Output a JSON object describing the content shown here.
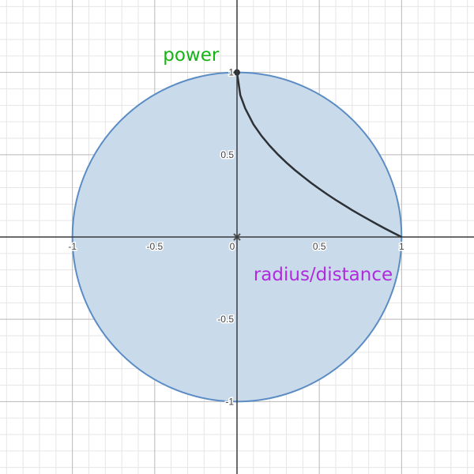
{
  "chart_data": {
    "type": "line",
    "xlim": [
      -1.44,
      1.44
    ],
    "ylim": [
      -1.44,
      1.44
    ],
    "grid": true,
    "x_ticks": [
      {
        "value": -1,
        "label": "-1"
      },
      {
        "value": -0.5,
        "label": "-0.5"
      },
      {
        "value": 0,
        "label": "0"
      },
      {
        "value": 0.5,
        "label": "0.5"
      },
      {
        "value": 1,
        "label": "1"
      }
    ],
    "y_ticks": [
      {
        "value": 1,
        "label": "1"
      },
      {
        "value": 0.5,
        "label": "0.5"
      },
      {
        "value": -0.5,
        "label": "-0.5"
      },
      {
        "value": -1,
        "label": "-1"
      }
    ],
    "disk": {
      "center": [
        0,
        0
      ],
      "radius": 1,
      "fill": "#c9daea",
      "stroke": "#5b8cc4"
    },
    "curve": {
      "color": "#2d3136",
      "points": [
        [
          0,
          1
        ],
        [
          0.02,
          0.862
        ],
        [
          0.05,
          0.781
        ],
        [
          0.1,
          0.684
        ],
        [
          0.15,
          0.613
        ],
        [
          0.2,
          0.553
        ],
        [
          0.25,
          0.5
        ],
        [
          0.3,
          0.452
        ],
        [
          0.35,
          0.408
        ],
        [
          0.4,
          0.368
        ],
        [
          0.45,
          0.329
        ],
        [
          0.5,
          0.293
        ],
        [
          0.55,
          0.258
        ],
        [
          0.6,
          0.225
        ],
        [
          0.65,
          0.194
        ],
        [
          0.7,
          0.163
        ],
        [
          0.75,
          0.134
        ],
        [
          0.8,
          0.106
        ],
        [
          0.85,
          0.078
        ],
        [
          0.9,
          0.051
        ],
        [
          0.95,
          0.025
        ],
        [
          1,
          0
        ]
      ],
      "endpoint": [
        0,
        1
      ]
    },
    "origin_marker": [
      0,
      0
    ],
    "annotations": [
      {
        "text": "power",
        "x": -0.45,
        "y": 1.07,
        "color": "#17b317"
      },
      {
        "text": "radius/distance",
        "x": 0.1,
        "y": -0.265,
        "color": "#b12bde"
      }
    ]
  }
}
